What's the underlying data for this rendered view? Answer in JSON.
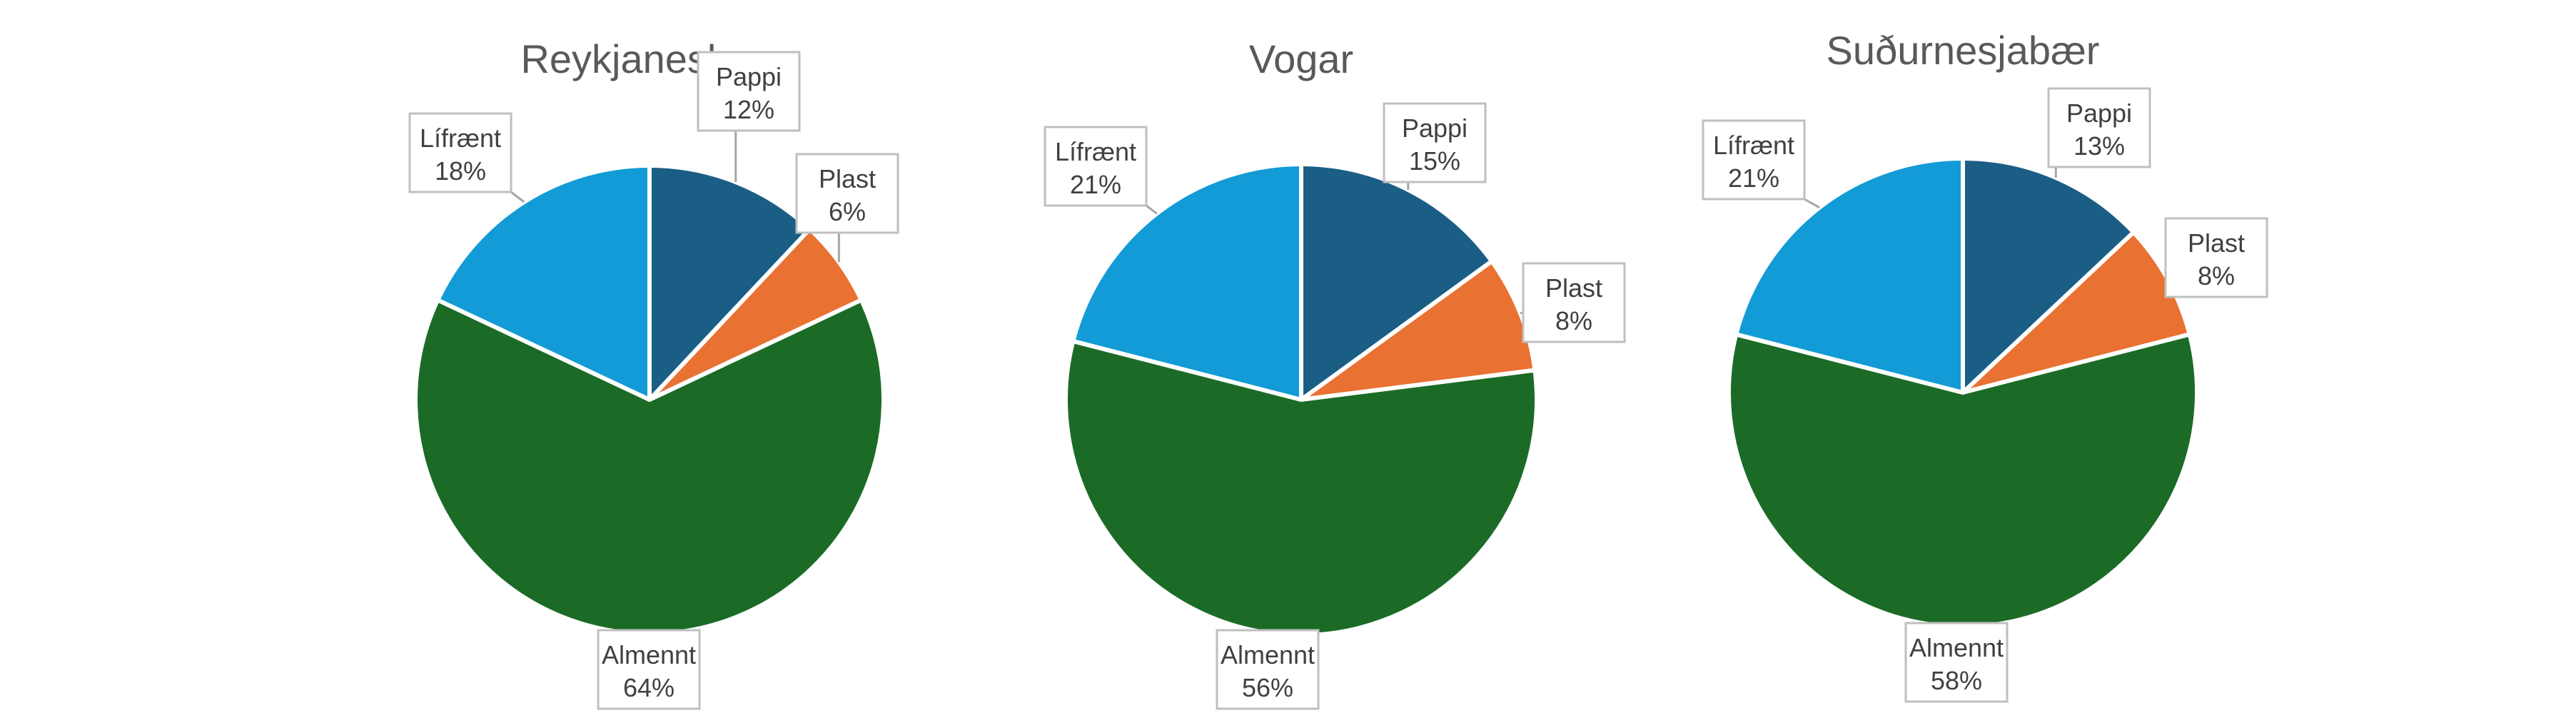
{
  "colors": {
    "Pappi": "#1a5e85",
    "Plast": "#e97132",
    "Almennt": "#1b6b27",
    "Lífrænt": "#129bd6"
  },
  "chart_data": [
    {
      "type": "pie",
      "title": "Reykjanesbær",
      "categories": [
        "Pappi",
        "Plast",
        "Almennt",
        "Lífrænt"
      ],
      "values": [
        12,
        6,
        64,
        18
      ],
      "value_labels": [
        "12%",
        "6%",
        "64%",
        "18%"
      ]
    },
    {
      "type": "pie",
      "title": "Vogar",
      "categories": [
        "Pappi",
        "Plast",
        "Almennt",
        "Lífrænt"
      ],
      "values": [
        15,
        8,
        56,
        21
      ],
      "value_labels": [
        "15%",
        "8%",
        "56%",
        "21%"
      ]
    },
    {
      "type": "pie",
      "title": "Suðurnesjabær",
      "categories": [
        "Pappi",
        "Plast",
        "Almennt",
        "Lífrænt"
      ],
      "values": [
        13,
        8,
        58,
        21
      ],
      "value_labels": [
        "13%",
        "8%",
        "58%",
        "21%"
      ]
    }
  ]
}
